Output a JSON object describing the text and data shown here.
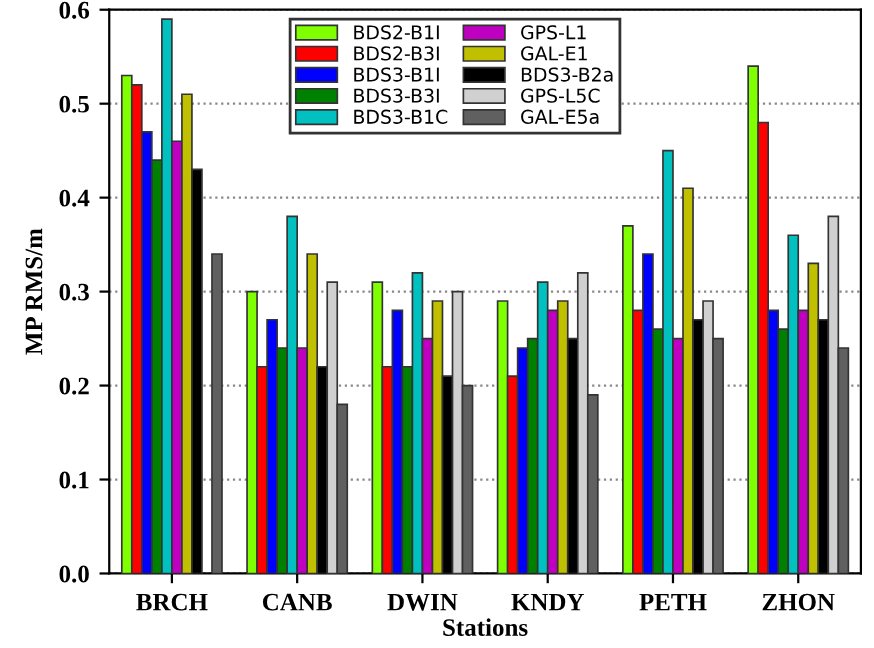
{
  "chart_data": {
    "type": "bar",
    "xlabel": "Stations",
    "ylabel": "MP RMS/m",
    "categories": [
      "BRCH",
      "CANB",
      "DWIN",
      "KNDY",
      "PETH",
      "ZHON"
    ],
    "series": [
      {
        "name": "BDS2-B1I",
        "color": "#80ff00",
        "values": [
          0.53,
          0.3,
          0.31,
          0.29,
          0.37,
          0.54
        ]
      },
      {
        "name": "BDS2-B3I",
        "color": "#ff0000",
        "values": [
          0.52,
          0.22,
          0.22,
          0.21,
          0.28,
          0.48
        ]
      },
      {
        "name": "BDS3-B1I",
        "color": "#0000ff",
        "values": [
          0.47,
          0.27,
          0.28,
          0.24,
          0.34,
          0.28
        ]
      },
      {
        "name": "BDS3-B3I",
        "color": "#008000",
        "values": [
          0.44,
          0.24,
          0.22,
          0.25,
          0.26,
          0.26
        ]
      },
      {
        "name": "BDS3-B1C",
        "color": "#00c0c0",
        "values": [
          0.59,
          0.38,
          0.32,
          0.31,
          0.45,
          0.36
        ]
      },
      {
        "name": "GPS-L1",
        "color": "#c000c0",
        "values": [
          0.46,
          0.24,
          0.25,
          0.28,
          0.25,
          0.28
        ]
      },
      {
        "name": "GAL-E1",
        "color": "#c0c000",
        "values": [
          0.51,
          0.34,
          0.29,
          0.29,
          0.41,
          0.33
        ]
      },
      {
        "name": "BDS3-B2a",
        "color": "#000000",
        "values": [
          0.43,
          0.22,
          0.21,
          0.25,
          0.27,
          0.27
        ]
      },
      {
        "name": "GPS-L5C",
        "color": "#d0d0d0",
        "values": [
          null,
          0.31,
          0.3,
          0.32,
          0.29,
          0.38
        ]
      },
      {
        "name": "GAL-E5a",
        "color": "#606060",
        "values": [
          0.34,
          0.18,
          0.2,
          0.19,
          0.25,
          0.24
        ]
      }
    ],
    "ylim": [
      0.0,
      0.6
    ],
    "yticks": [
      {
        "value": 0.0,
        "label": "0.0"
      },
      0.1,
      0.2,
      0.3,
      0.4,
      0.5,
      0.6
    ],
    "grid": "y",
    "legend": "top"
  }
}
